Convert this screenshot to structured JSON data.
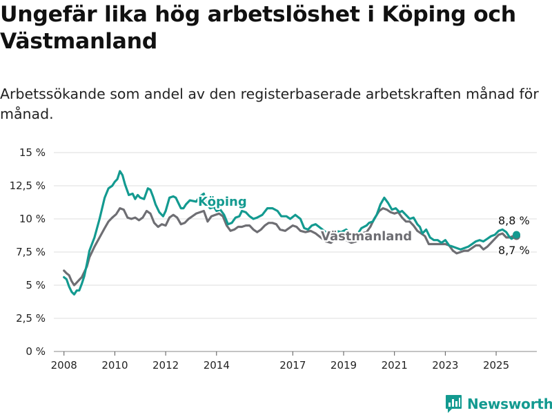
{
  "title": "Ungefär lika hög arbetslöshet i Köping och Västmanland",
  "subtitle": "Arbetssökande som andel av den registerbaserade arbetskraften månad för månad.",
  "brand": {
    "name": "Newsworthy",
    "icon": "newsworthy-logo-icon",
    "color": "#139a90"
  },
  "chart_data": {
    "type": "line",
    "title": "",
    "xlabel": "",
    "ylabel": "",
    "ylim": [
      0,
      15
    ],
    "yticks": [
      0,
      2.5,
      5,
      7.5,
      10,
      12.5,
      15
    ],
    "ytick_labels": [
      "0 %",
      "2,5 %",
      "5 %",
      "7,5 %",
      "10 %",
      "12,5 %",
      "15 %"
    ],
    "xlim": [
      2007.6,
      2026.6
    ],
    "xticks": [
      2008,
      2010,
      2012,
      2014,
      2017,
      2019,
      2021,
      2023,
      2025
    ],
    "xtick_labels": [
      "2008",
      "2010",
      "2012",
      "2014",
      "2017",
      "2019",
      "2021",
      "2023",
      "2025"
    ],
    "grid": true,
    "series": [
      {
        "name": "Köping",
        "color": "#139a90",
        "end_label": "8,8 %",
        "points": [
          [
            2008.0,
            5.6
          ],
          [
            2008.1,
            5.45
          ],
          [
            2008.2,
            4.9
          ],
          [
            2008.3,
            4.5
          ],
          [
            2008.4,
            4.3
          ],
          [
            2008.5,
            4.6
          ],
          [
            2008.6,
            4.6
          ],
          [
            2008.7,
            5.1
          ],
          [
            2008.8,
            5.7
          ],
          [
            2008.9,
            6.6
          ],
          [
            2009.0,
            7.6
          ],
          [
            2009.2,
            8.6
          ],
          [
            2009.4,
            10.0
          ],
          [
            2009.6,
            11.6
          ],
          [
            2009.75,
            12.3
          ],
          [
            2009.9,
            12.5
          ],
          [
            2010.0,
            12.8
          ],
          [
            2010.1,
            13.0
          ],
          [
            2010.2,
            13.6
          ],
          [
            2010.3,
            13.3
          ],
          [
            2010.4,
            12.6
          ],
          [
            2010.55,
            11.8
          ],
          [
            2010.7,
            11.9
          ],
          [
            2010.8,
            11.5
          ],
          [
            2010.9,
            11.8
          ],
          [
            2011.0,
            11.6
          ],
          [
            2011.15,
            11.5
          ],
          [
            2011.3,
            12.3
          ],
          [
            2011.4,
            12.2
          ],
          [
            2011.5,
            11.7
          ],
          [
            2011.6,
            11.1
          ],
          [
            2011.75,
            10.5
          ],
          [
            2011.9,
            10.2
          ],
          [
            2012.0,
            10.6
          ],
          [
            2012.15,
            11.6
          ],
          [
            2012.3,
            11.7
          ],
          [
            2012.4,
            11.6
          ],
          [
            2012.5,
            11.2
          ],
          [
            2012.6,
            10.8
          ],
          [
            2012.7,
            10.8
          ],
          [
            2012.8,
            11.1
          ],
          [
            2012.95,
            11.4
          ],
          [
            2013.2,
            11.3
          ],
          [
            2013.35,
            11.7
          ],
          [
            2013.5,
            11.9
          ],
          [
            2013.6,
            11.1
          ],
          [
            2013.75,
            10.8
          ],
          [
            2013.9,
            10.9
          ],
          [
            2014.0,
            10.6
          ],
          [
            2014.15,
            10.7
          ],
          [
            2014.3,
            10.3
          ],
          [
            2014.45,
            9.6
          ],
          [
            2014.6,
            9.7
          ],
          [
            2014.75,
            10.1
          ],
          [
            2014.9,
            10.2
          ],
          [
            2015.0,
            10.6
          ],
          [
            2015.15,
            10.5
          ],
          [
            2015.3,
            10.2
          ],
          [
            2015.45,
            10.0
          ],
          [
            2015.6,
            10.1
          ],
          [
            2015.8,
            10.3
          ],
          [
            2016.0,
            10.8
          ],
          [
            2016.2,
            10.8
          ],
          [
            2016.4,
            10.6
          ],
          [
            2016.55,
            10.2
          ],
          [
            2016.75,
            10.2
          ],
          [
            2016.9,
            10.0
          ],
          [
            2017.1,
            10.3
          ],
          [
            2017.3,
            10.0
          ],
          [
            2017.45,
            9.3
          ],
          [
            2017.6,
            9.2
          ],
          [
            2017.75,
            9.5
          ],
          [
            2017.9,
            9.6
          ],
          [
            2018.1,
            9.3
          ],
          [
            2018.3,
            9.0
          ],
          [
            2018.5,
            8.9
          ],
          [
            2018.7,
            9.1
          ],
          [
            2018.9,
            9.0
          ],
          [
            2019.1,
            9.2
          ],
          [
            2019.3,
            8.8
          ],
          [
            2019.5,
            8.7
          ],
          [
            2019.7,
            9.3
          ],
          [
            2019.9,
            9.5
          ],
          [
            2020.0,
            9.7
          ],
          [
            2020.15,
            9.8
          ],
          [
            2020.3,
            10.3
          ],
          [
            2020.45,
            11.1
          ],
          [
            2020.6,
            11.6
          ],
          [
            2020.75,
            11.2
          ],
          [
            2020.9,
            10.7
          ],
          [
            2021.05,
            10.8
          ],
          [
            2021.2,
            10.5
          ],
          [
            2021.3,
            10.6
          ],
          [
            2021.45,
            10.3
          ],
          [
            2021.6,
            10.0
          ],
          [
            2021.75,
            10.1
          ],
          [
            2021.9,
            9.6
          ],
          [
            2022.0,
            9.4
          ],
          [
            2022.1,
            8.9
          ],
          [
            2022.25,
            9.2
          ],
          [
            2022.4,
            8.6
          ],
          [
            2022.55,
            8.4
          ],
          [
            2022.7,
            8.4
          ],
          [
            2022.85,
            8.2
          ],
          [
            2023.0,
            8.4
          ],
          [
            2023.15,
            8.0
          ],
          [
            2023.3,
            7.9
          ],
          [
            2023.45,
            7.8
          ],
          [
            2023.6,
            7.7
          ],
          [
            2023.75,
            7.8
          ],
          [
            2023.9,
            7.9
          ],
          [
            2024.05,
            8.1
          ],
          [
            2024.2,
            8.3
          ],
          [
            2024.35,
            8.4
          ],
          [
            2024.5,
            8.3
          ],
          [
            2024.65,
            8.5
          ],
          [
            2024.8,
            8.7
          ],
          [
            2024.95,
            8.8
          ],
          [
            2025.1,
            9.1
          ],
          [
            2025.25,
            9.2
          ],
          [
            2025.4,
            9.0
          ],
          [
            2025.5,
            8.7
          ],
          [
            2025.6,
            8.5
          ],
          [
            2025.7,
            8.6
          ],
          [
            2025.8,
            8.8
          ]
        ]
      },
      {
        "name": "Västmanland",
        "color": "#6e6e73",
        "end_label": "8,7 %",
        "points": [
          [
            2008.0,
            6.1
          ],
          [
            2008.1,
            5.9
          ],
          [
            2008.2,
            5.75
          ],
          [
            2008.3,
            5.3
          ],
          [
            2008.4,
            5.0
          ],
          [
            2008.5,
            5.2
          ],
          [
            2008.6,
            5.4
          ],
          [
            2008.7,
            5.6
          ],
          [
            2008.8,
            6.0
          ],
          [
            2008.9,
            6.4
          ],
          [
            2009.0,
            7.1
          ],
          [
            2009.2,
            7.9
          ],
          [
            2009.4,
            8.6
          ],
          [
            2009.6,
            9.3
          ],
          [
            2009.75,
            9.8
          ],
          [
            2009.9,
            10.1
          ],
          [
            2010.05,
            10.35
          ],
          [
            2010.2,
            10.8
          ],
          [
            2010.35,
            10.7
          ],
          [
            2010.5,
            10.1
          ],
          [
            2010.65,
            10.0
          ],
          [
            2010.8,
            10.1
          ],
          [
            2010.95,
            9.9
          ],
          [
            2011.1,
            10.1
          ],
          [
            2011.25,
            10.6
          ],
          [
            2011.4,
            10.4
          ],
          [
            2011.55,
            9.7
          ],
          [
            2011.7,
            9.4
          ],
          [
            2011.85,
            9.6
          ],
          [
            2012.0,
            9.5
          ],
          [
            2012.15,
            10.1
          ],
          [
            2012.3,
            10.3
          ],
          [
            2012.45,
            10.1
          ],
          [
            2012.6,
            9.6
          ],
          [
            2012.75,
            9.7
          ],
          [
            2012.9,
            10.0
          ],
          [
            2013.05,
            10.2
          ],
          [
            2013.2,
            10.4
          ],
          [
            2013.35,
            10.5
          ],
          [
            2013.5,
            10.6
          ],
          [
            2013.65,
            9.8
          ],
          [
            2013.8,
            10.2
          ],
          [
            2013.95,
            10.3
          ],
          [
            2014.1,
            10.4
          ],
          [
            2014.25,
            10.2
          ],
          [
            2014.4,
            9.5
          ],
          [
            2014.55,
            9.1
          ],
          [
            2014.7,
            9.2
          ],
          [
            2014.85,
            9.4
          ],
          [
            2015.0,
            9.4
          ],
          [
            2015.15,
            9.5
          ],
          [
            2015.3,
            9.5
          ],
          [
            2015.45,
            9.2
          ],
          [
            2015.6,
            9.0
          ],
          [
            2015.75,
            9.2
          ],
          [
            2015.9,
            9.5
          ],
          [
            2016.05,
            9.7
          ],
          [
            2016.2,
            9.7
          ],
          [
            2016.35,
            9.6
          ],
          [
            2016.5,
            9.2
          ],
          [
            2016.7,
            9.1
          ],
          [
            2016.85,
            9.3
          ],
          [
            2017.0,
            9.5
          ],
          [
            2017.15,
            9.4
          ],
          [
            2017.3,
            9.1
          ],
          [
            2017.5,
            9.0
          ],
          [
            2017.7,
            9.1
          ],
          [
            2017.9,
            8.9
          ],
          [
            2018.1,
            8.6
          ],
          [
            2018.3,
            8.3
          ],
          [
            2018.5,
            8.2
          ],
          [
            2018.7,
            8.5
          ],
          [
            2018.9,
            8.6
          ],
          [
            2019.1,
            8.4
          ],
          [
            2019.3,
            8.2
          ],
          [
            2019.5,
            8.3
          ],
          [
            2019.7,
            8.9
          ],
          [
            2019.9,
            9.0
          ],
          [
            2020.05,
            9.4
          ],
          [
            2020.2,
            10.0
          ],
          [
            2020.4,
            10.6
          ],
          [
            2020.55,
            10.8
          ],
          [
            2020.7,
            10.7
          ],
          [
            2020.85,
            10.5
          ],
          [
            2021.0,
            10.4
          ],
          [
            2021.15,
            10.5
          ],
          [
            2021.3,
            10.1
          ],
          [
            2021.45,
            9.8
          ],
          [
            2021.6,
            9.8
          ],
          [
            2021.75,
            9.5
          ],
          [
            2021.9,
            9.1
          ],
          [
            2022.05,
            8.9
          ],
          [
            2022.2,
            8.7
          ],
          [
            2022.35,
            8.1
          ],
          [
            2022.5,
            8.1
          ],
          [
            2022.7,
            8.1
          ],
          [
            2022.85,
            8.1
          ],
          [
            2023.0,
            8.1
          ],
          [
            2023.15,
            8.0
          ],
          [
            2023.3,
            7.6
          ],
          [
            2023.45,
            7.4
          ],
          [
            2023.6,
            7.5
          ],
          [
            2023.75,
            7.6
          ],
          [
            2023.9,
            7.6
          ],
          [
            2024.05,
            7.8
          ],
          [
            2024.2,
            8.0
          ],
          [
            2024.35,
            8.0
          ],
          [
            2024.5,
            7.7
          ],
          [
            2024.65,
            7.9
          ],
          [
            2024.8,
            8.2
          ],
          [
            2024.95,
            8.5
          ],
          [
            2025.1,
            8.8
          ],
          [
            2025.25,
            8.9
          ],
          [
            2025.4,
            8.6
          ],
          [
            2025.55,
            8.6
          ],
          [
            2025.65,
            8.7
          ],
          [
            2025.8,
            8.7
          ]
        ]
      }
    ]
  }
}
